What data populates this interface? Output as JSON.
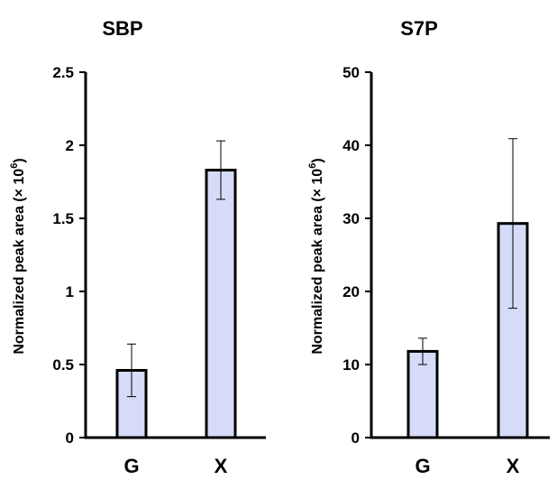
{
  "chart_data": [
    {
      "type": "bar",
      "title": "SBP",
      "ylabel": "Normalized peak area (× 10",
      "ylabel_sup": "6",
      "ylabel_close": ")",
      "categories": [
        "G",
        "X"
      ],
      "values": [
        0.46,
        1.83
      ],
      "errors": [
        0.18,
        0.2
      ],
      "ylim": [
        0,
        2.5
      ],
      "yticks": [
        0,
        0.5,
        1,
        1.5,
        2,
        2.5
      ],
      "ytick_labels": [
        "0",
        "0.5",
        "1",
        "1.5",
        "2",
        "2.5"
      ],
      "grid": false,
      "bar_color": "#d6dcf7"
    },
    {
      "type": "bar",
      "title": "S7P",
      "ylabel": "Normalized peak area (× 10",
      "ylabel_sup": "6",
      "ylabel_close": ")",
      "categories": [
        "G",
        "X"
      ],
      "values": [
        11.8,
        29.3
      ],
      "errors": [
        1.8,
        11.6
      ],
      "ylim": [
        0,
        50
      ],
      "yticks": [
        0,
        10,
        20,
        30,
        40,
        50
      ],
      "ytick_labels": [
        "0",
        "10",
        "20",
        "30",
        "40",
        "50"
      ],
      "grid": false,
      "bar_color": "#d6dcf7"
    }
  ]
}
